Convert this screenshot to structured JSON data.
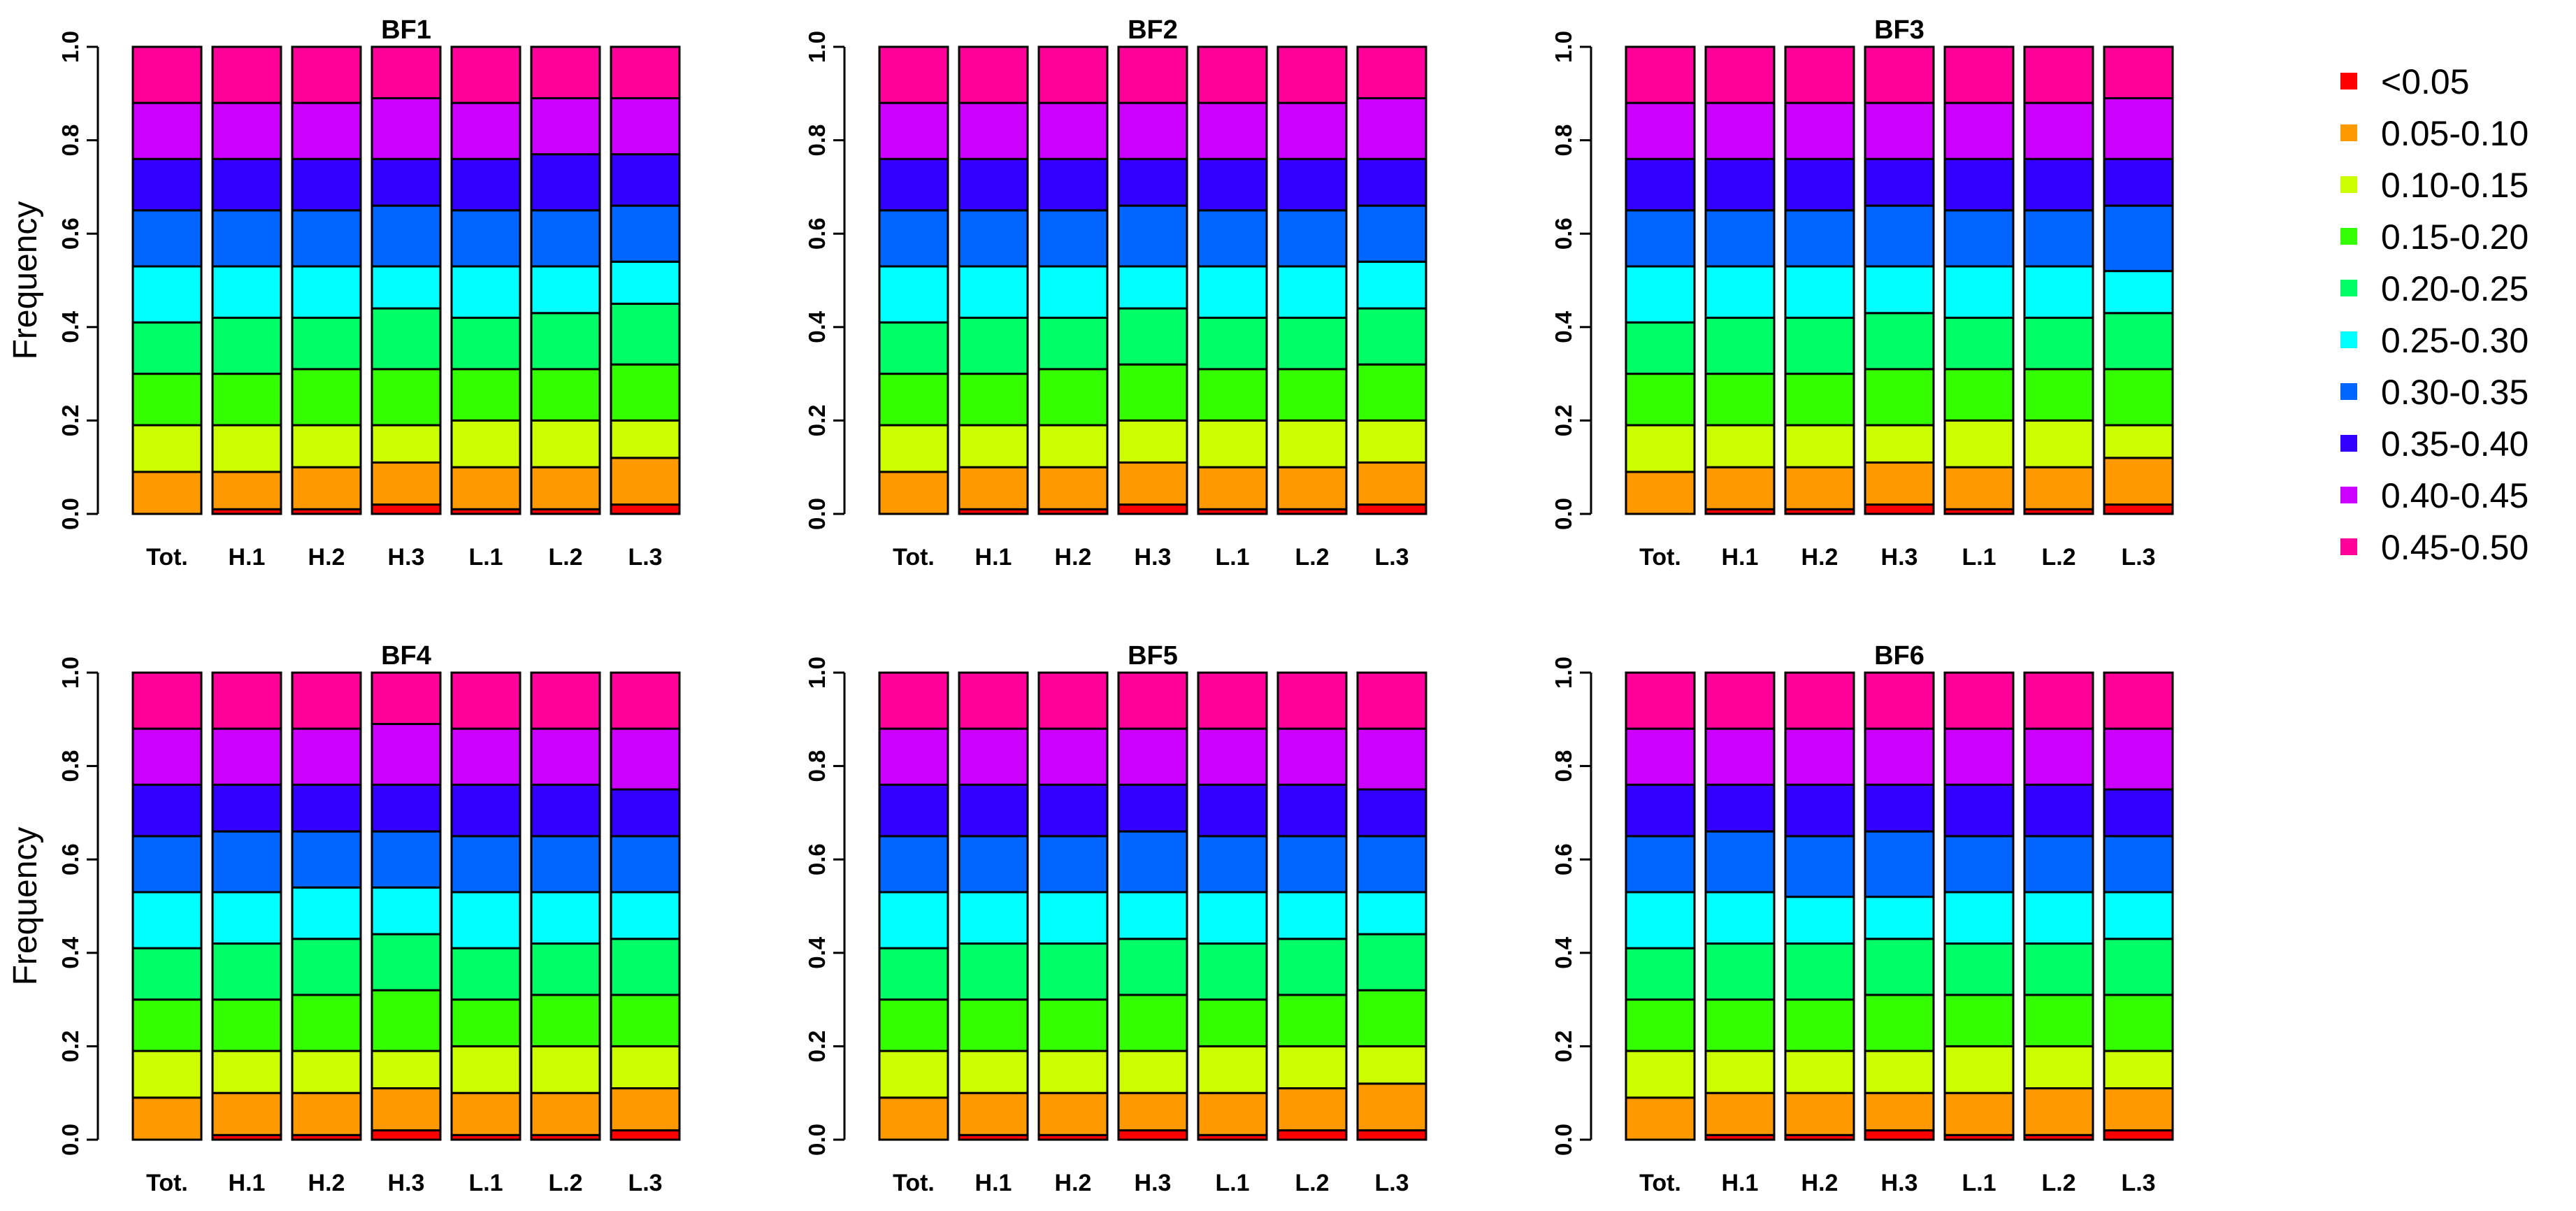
{
  "chart_data": {
    "type": "bar",
    "stacked": true,
    "ylabel": "Frequency",
    "ylim": [
      0,
      1
    ],
    "yticks": [
      "0.0",
      "0.2",
      "0.4",
      "0.6",
      "0.8",
      "1.0"
    ],
    "categories": [
      "Tot.",
      "H.1",
      "H.2",
      "H.3",
      "L.1",
      "L.2",
      "L.3"
    ],
    "legend": {
      "position": "right",
      "entries": [
        "<0.05",
        "0.05-0.10",
        "0.10-0.15",
        "0.15-0.20",
        "0.20-0.25",
        "0.25-0.30",
        "0.30-0.35",
        "0.35-0.40",
        "0.40-0.45",
        "0.45-0.50"
      ],
      "colors": [
        "#ff0000",
        "#ff9900",
        "#ccff00",
        "#33ff00",
        "#00ff66",
        "#00ffff",
        "#0066ff",
        "#3300ff",
        "#cc00ff",
        "#ff0099"
      ]
    },
    "panels": [
      {
        "title": "BF1",
        "ylabel": "Frequency",
        "cumulative": [
          [
            0.0,
            0.09,
            0.19,
            0.3,
            0.41,
            0.53,
            0.65,
            0.76,
            0.88,
            1.0
          ],
          [
            0.01,
            0.09,
            0.19,
            0.3,
            0.42,
            0.53,
            0.65,
            0.76,
            0.88,
            1.0
          ],
          [
            0.01,
            0.1,
            0.19,
            0.31,
            0.42,
            0.53,
            0.65,
            0.76,
            0.88,
            1.0
          ],
          [
            0.02,
            0.11,
            0.19,
            0.31,
            0.44,
            0.53,
            0.66,
            0.76,
            0.89,
            1.0
          ],
          [
            0.01,
            0.1,
            0.2,
            0.31,
            0.42,
            0.53,
            0.65,
            0.76,
            0.88,
            1.0
          ],
          [
            0.01,
            0.1,
            0.2,
            0.31,
            0.43,
            0.53,
            0.65,
            0.77,
            0.89,
            1.0
          ],
          [
            0.02,
            0.12,
            0.2,
            0.32,
            0.45,
            0.54,
            0.66,
            0.77,
            0.89,
            1.0
          ]
        ]
      },
      {
        "title": "BF2",
        "ylabel": "",
        "cumulative": [
          [
            0.0,
            0.09,
            0.19,
            0.3,
            0.41,
            0.53,
            0.65,
            0.76,
            0.88,
            1.0
          ],
          [
            0.01,
            0.1,
            0.19,
            0.3,
            0.42,
            0.53,
            0.65,
            0.76,
            0.88,
            1.0
          ],
          [
            0.01,
            0.1,
            0.19,
            0.31,
            0.42,
            0.53,
            0.65,
            0.76,
            0.88,
            1.0
          ],
          [
            0.02,
            0.11,
            0.2,
            0.32,
            0.44,
            0.53,
            0.66,
            0.76,
            0.88,
            1.0
          ],
          [
            0.01,
            0.1,
            0.2,
            0.31,
            0.42,
            0.53,
            0.65,
            0.76,
            0.88,
            1.0
          ],
          [
            0.01,
            0.1,
            0.2,
            0.31,
            0.42,
            0.53,
            0.65,
            0.76,
            0.88,
            1.0
          ],
          [
            0.02,
            0.11,
            0.2,
            0.32,
            0.44,
            0.54,
            0.66,
            0.76,
            0.89,
            1.0
          ]
        ]
      },
      {
        "title": "BF3",
        "ylabel": "",
        "cumulative": [
          [
            0.0,
            0.09,
            0.19,
            0.3,
            0.41,
            0.53,
            0.65,
            0.76,
            0.88,
            1.0
          ],
          [
            0.01,
            0.1,
            0.19,
            0.3,
            0.42,
            0.53,
            0.65,
            0.76,
            0.88,
            1.0
          ],
          [
            0.01,
            0.1,
            0.19,
            0.3,
            0.42,
            0.53,
            0.65,
            0.76,
            0.88,
            1.0
          ],
          [
            0.02,
            0.11,
            0.19,
            0.31,
            0.43,
            0.53,
            0.66,
            0.76,
            0.88,
            1.0
          ],
          [
            0.01,
            0.1,
            0.2,
            0.31,
            0.42,
            0.53,
            0.65,
            0.76,
            0.88,
            1.0
          ],
          [
            0.01,
            0.1,
            0.2,
            0.31,
            0.42,
            0.53,
            0.65,
            0.76,
            0.88,
            1.0
          ],
          [
            0.02,
            0.12,
            0.19,
            0.31,
            0.43,
            0.52,
            0.66,
            0.76,
            0.89,
            1.0
          ]
        ]
      },
      {
        "title": "BF4",
        "ylabel": "Frequency",
        "cumulative": [
          [
            0.0,
            0.09,
            0.19,
            0.3,
            0.41,
            0.53,
            0.65,
            0.76,
            0.88,
            1.0
          ],
          [
            0.01,
            0.1,
            0.19,
            0.3,
            0.42,
            0.53,
            0.66,
            0.76,
            0.88,
            1.0
          ],
          [
            0.01,
            0.1,
            0.19,
            0.31,
            0.43,
            0.54,
            0.66,
            0.76,
            0.88,
            1.0
          ],
          [
            0.02,
            0.11,
            0.19,
            0.32,
            0.44,
            0.54,
            0.66,
            0.76,
            0.89,
            1.0
          ],
          [
            0.01,
            0.1,
            0.2,
            0.3,
            0.41,
            0.53,
            0.65,
            0.76,
            0.88,
            1.0
          ],
          [
            0.01,
            0.1,
            0.2,
            0.31,
            0.42,
            0.53,
            0.65,
            0.76,
            0.88,
            1.0
          ],
          [
            0.02,
            0.11,
            0.2,
            0.31,
            0.43,
            0.53,
            0.65,
            0.75,
            0.88,
            1.0
          ]
        ]
      },
      {
        "title": "BF5",
        "ylabel": "",
        "cumulative": [
          [
            0.0,
            0.09,
            0.19,
            0.3,
            0.41,
            0.53,
            0.65,
            0.76,
            0.88,
            1.0
          ],
          [
            0.01,
            0.1,
            0.19,
            0.3,
            0.42,
            0.53,
            0.65,
            0.76,
            0.88,
            1.0
          ],
          [
            0.01,
            0.1,
            0.19,
            0.3,
            0.42,
            0.53,
            0.65,
            0.76,
            0.88,
            1.0
          ],
          [
            0.02,
            0.1,
            0.19,
            0.31,
            0.43,
            0.53,
            0.66,
            0.76,
            0.88,
            1.0
          ],
          [
            0.01,
            0.1,
            0.2,
            0.3,
            0.42,
            0.53,
            0.65,
            0.76,
            0.88,
            1.0
          ],
          [
            0.02,
            0.11,
            0.2,
            0.31,
            0.43,
            0.53,
            0.65,
            0.76,
            0.88,
            1.0
          ],
          [
            0.02,
            0.12,
            0.2,
            0.32,
            0.44,
            0.53,
            0.65,
            0.75,
            0.88,
            1.0
          ]
        ]
      },
      {
        "title": "BF6",
        "ylabel": "",
        "cumulative": [
          [
            0.0,
            0.09,
            0.19,
            0.3,
            0.41,
            0.53,
            0.65,
            0.76,
            0.88,
            1.0
          ],
          [
            0.01,
            0.1,
            0.19,
            0.3,
            0.42,
            0.53,
            0.66,
            0.76,
            0.88,
            1.0
          ],
          [
            0.01,
            0.1,
            0.19,
            0.3,
            0.42,
            0.52,
            0.65,
            0.76,
            0.88,
            1.0
          ],
          [
            0.02,
            0.1,
            0.19,
            0.31,
            0.43,
            0.52,
            0.66,
            0.76,
            0.88,
            1.0
          ],
          [
            0.01,
            0.1,
            0.2,
            0.31,
            0.42,
            0.53,
            0.65,
            0.76,
            0.88,
            1.0
          ],
          [
            0.01,
            0.11,
            0.2,
            0.31,
            0.42,
            0.53,
            0.65,
            0.76,
            0.88,
            1.0
          ],
          [
            0.02,
            0.11,
            0.19,
            0.31,
            0.43,
            0.53,
            0.65,
            0.75,
            0.88,
            1.0
          ]
        ]
      }
    ]
  }
}
